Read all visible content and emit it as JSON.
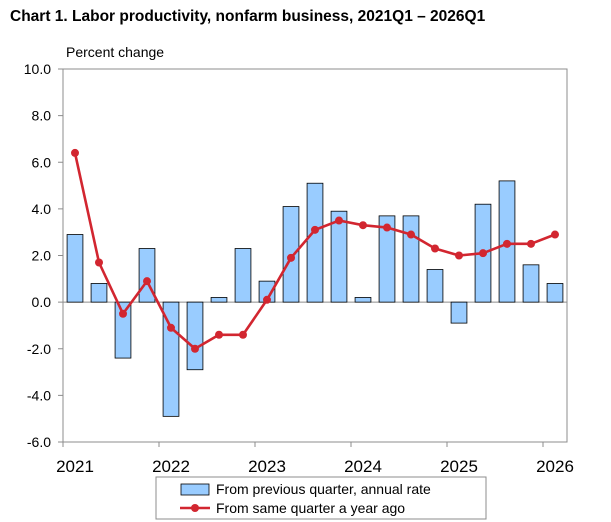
{
  "chart_data": {
    "type": "bar",
    "title": "Chart  1. Labor productivity, nonfarm business, 2021Q1 – 2026Q1",
    "ylabel": "Percent change",
    "ylim": [
      -6,
      10
    ],
    "yticks": [
      "10.0",
      "8.0",
      "6.0",
      "4.0",
      "2.0",
      "0.0",
      "-2.0",
      "-4.0",
      "-6.0"
    ],
    "ytick_values": [
      10,
      8,
      6,
      4,
      2,
      0,
      -2,
      -4,
      -6
    ],
    "categories": [
      "2021Q1",
      "2021Q2",
      "2021Q3",
      "2021Q4",
      "2022Q1",
      "2022Q2",
      "2022Q3",
      "2022Q4",
      "2023Q1",
      "2023Q2",
      "2023Q3",
      "2023Q4",
      "2024Q1",
      "2024Q2",
      "2024Q3",
      "2024Q4",
      "2025Q1",
      "2025Q2",
      "2025Q3",
      "2025Q4",
      "2026Q1"
    ],
    "xtick_labels": [
      {
        "label": "2021",
        "index": 0
      },
      {
        "label": "2022",
        "index": 4
      },
      {
        "label": "2023",
        "index": 8
      },
      {
        "label": "2024",
        "index": 12
      },
      {
        "label": "2025",
        "index": 16
      },
      {
        "label": "2026",
        "index": 20
      }
    ],
    "grid": false,
    "legend_position": "bottom-center",
    "series": [
      {
        "name": "From previous quarter, annual rate",
        "type": "bar",
        "color": "#99ccff",
        "values": [
          2.9,
          0.8,
          -2.4,
          2.3,
          -4.9,
          -2.9,
          0.2,
          2.3,
          0.9,
          4.1,
          5.1,
          3.9,
          0.2,
          3.7,
          3.7,
          1.4,
          -0.9,
          4.2,
          5.2,
          1.6,
          0.8
        ]
      },
      {
        "name": "From same quarter a year ago",
        "type": "line",
        "color": "#d22630",
        "values": [
          6.4,
          1.7,
          -0.5,
          0.9,
          -1.1,
          -2.0,
          -1.4,
          -1.4,
          0.1,
          1.9,
          3.1,
          3.5,
          3.3,
          3.2,
          2.9,
          2.3,
          2.0,
          2.1,
          2.5,
          2.5,
          2.9
        ]
      }
    ]
  }
}
